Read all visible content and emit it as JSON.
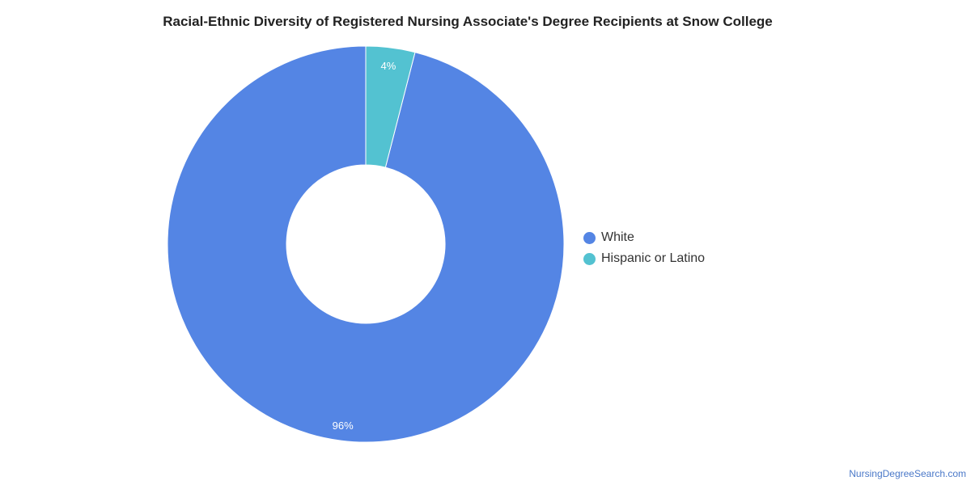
{
  "chart_data": {
    "type": "pie",
    "title": "Racial-Ethnic Diversity of Registered Nursing Associate's Degree Recipients at Snow College",
    "categories": [
      "White",
      "Hispanic or Latino"
    ],
    "values": [
      96,
      4
    ],
    "labels": [
      "96%",
      "4%"
    ],
    "colors": [
      "#5485e4",
      "#53c2d1"
    ],
    "legend_placement": "right",
    "donut": true
  },
  "watermark": "NursingDegreeSearch.com"
}
